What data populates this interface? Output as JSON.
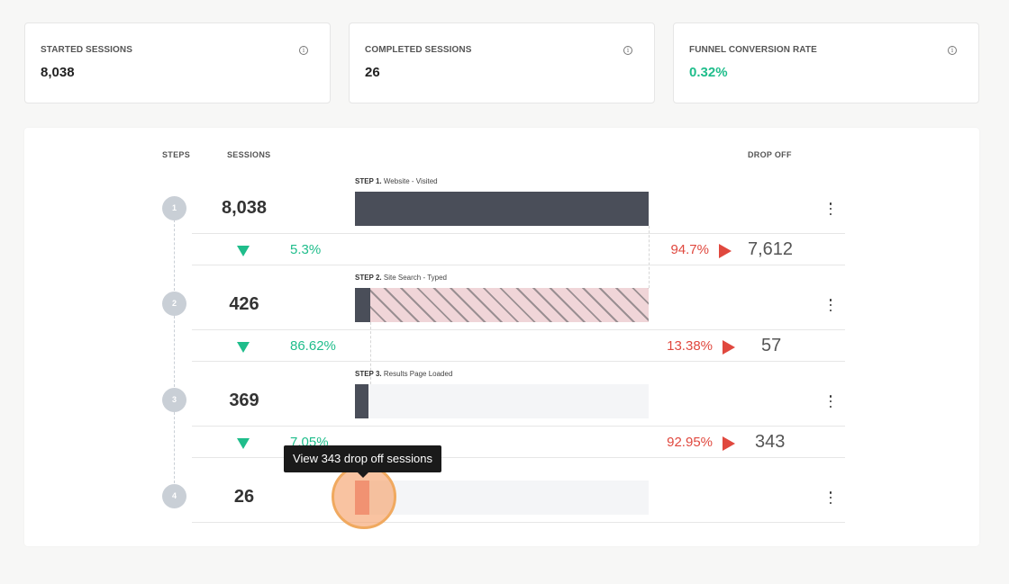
{
  "kpis": [
    {
      "label": "STARTED SESSIONS",
      "value": "8,038"
    },
    {
      "label": "COMPLETED SESSIONS",
      "value": "26"
    },
    {
      "label": "FUNNEL CONVERSION RATE",
      "value": "0.32%"
    }
  ],
  "info_icon_glyph": "i",
  "headers": {
    "steps": "STEPS",
    "sessions": "SESSIONS",
    "drop_off": "DROP OFF"
  },
  "steps": [
    {
      "number": "1",
      "sessions": "8,038",
      "label_prefix": "STEP 1.",
      "label": "Website - Visited",
      "fill_fraction": 1.0
    },
    {
      "number": "2",
      "sessions": "426",
      "label_prefix": "STEP 2.",
      "label": "Site Search - Typed",
      "fill_fraction": 0.053
    },
    {
      "number": "3",
      "sessions": "369",
      "label_prefix": "STEP 3.",
      "label": "Results Page Loaded",
      "fill_fraction": 0.046
    },
    {
      "number": "4",
      "sessions": "26",
      "label_prefix": "",
      "label": "",
      "fill_fraction": 0.003
    }
  ],
  "transitions": [
    {
      "conversion": "5.3%",
      "drop_pct": "94.7%",
      "drop_count": "7,612"
    },
    {
      "conversion": "86.62%",
      "drop_pct": "13.38%",
      "drop_count": "57"
    },
    {
      "conversion": "7.05%",
      "drop_pct": "92.95%",
      "drop_count": "343"
    }
  ],
  "tooltip": "View 343 drop off sessions",
  "colors": {
    "accent_green": "#1fbd8b",
    "drop_red": "#e0483e",
    "bar_dark": "#4a4e59"
  },
  "icons": {
    "info": "info-icon",
    "menu": "kebab-menu-icon",
    "conversion": "triangle-down-icon",
    "drop": "play-right-icon"
  }
}
